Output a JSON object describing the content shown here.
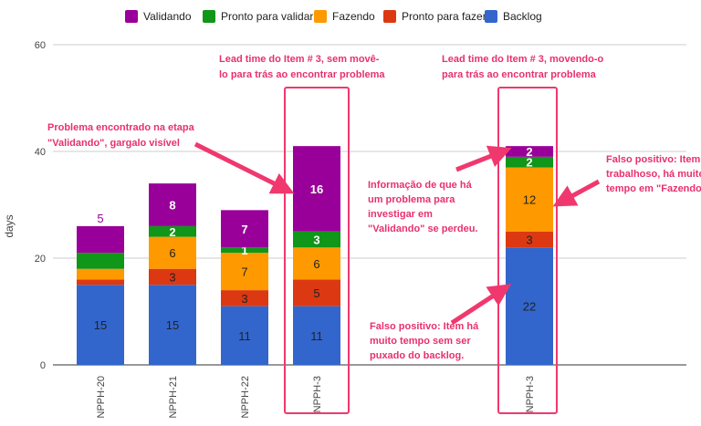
{
  "chart_data": {
    "type": "bar",
    "stacked": true,
    "categories": [
      "NPPH-20",
      "NPPH-21",
      "NPPH-22",
      "NPPH-3",
      "NPPH-3"
    ],
    "ylabel": "days",
    "xlabel": "",
    "ylim": [
      0,
      60
    ],
    "yticks": [
      0,
      20,
      40,
      60
    ],
    "grid": true,
    "legend_position": "top",
    "series": [
      {
        "name": "Backlog",
        "color": "#3366cc",
        "values": [
          15,
          15,
          11,
          11,
          22
        ]
      },
      {
        "name": "Pronto para fazer",
        "color": "#dc3912",
        "values": [
          1,
          3,
          3,
          5,
          3
        ]
      },
      {
        "name": "Fazendo",
        "color": "#ff9900",
        "values": [
          2,
          6,
          7,
          6,
          12
        ]
      },
      {
        "name": "Pronto para validar",
        "color": "#109618",
        "values": [
          3,
          2,
          1,
          3,
          2
        ]
      },
      {
        "name": "Validando",
        "color": "#990099",
        "values": [
          5,
          8,
          7,
          16,
          2
        ]
      }
    ],
    "legend_order": [
      "Validando",
      "Pronto para validar",
      "Fazendo",
      "Pronto para fazer",
      "Backlog"
    ],
    "annotations": [
      {
        "lines": [
          "Lead time do Item # 3, sem movê-",
          "lo para trás ao encontrar problema"
        ]
      },
      {
        "lines": [
          "Lead time do Item # 3, movendo-o",
          "para trás ao encontrar problema"
        ]
      },
      {
        "lines": [
          "Problema encontrado na etapa",
          "\"Validando\", gargalo visível"
        ]
      },
      {
        "lines": [
          "Informação de que há",
          "um problema para",
          "investigar em",
          "\"Validando\" se perdeu."
        ]
      },
      {
        "lines": [
          "Falso positivo: Item",
          "trabalhoso, há muito",
          "tempo em \"Fazendo\""
        ]
      },
      {
        "lines": [
          "Falso positivo: Item há",
          "muito tempo sem ser",
          "puxado do backlog."
        ]
      }
    ]
  }
}
